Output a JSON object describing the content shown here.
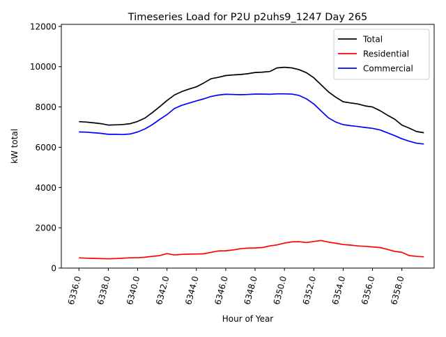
{
  "chart_data": {
    "type": "line",
    "title": "Timeseries Load for P2U p2uhs9_1247  Day 265",
    "xlabel": "Hour of Year",
    "ylabel": "kW total",
    "xlim": [
      6334.8,
      6360.2
    ],
    "ylim": [
      0,
      12100
    ],
    "xticks": [
      6336,
      6338,
      6340,
      6342,
      6344,
      6346,
      6348,
      6350,
      6352,
      6354,
      6356,
      6358
    ],
    "xtick_labels": [
      "6336.0",
      "6338.0",
      "6340.0",
      "6342.0",
      "6344.0",
      "6346.0",
      "6348.0",
      "6350.0",
      "6352.0",
      "6354.0",
      "6356.0",
      "6358.0"
    ],
    "yticks": [
      0,
      2000,
      4000,
      6000,
      8000,
      10000,
      12000
    ],
    "ytick_labels": [
      "0",
      "2000",
      "4000",
      "6000",
      "8000",
      "10000",
      "12000"
    ],
    "grid": false,
    "legend_position": "top-right",
    "x": [
      6336.0,
      6336.5,
      6337.0,
      6337.5,
      6338.0,
      6338.5,
      6339.0,
      6339.5,
      6340.0,
      6340.5,
      6341.0,
      6341.5,
      6342.0,
      6342.5,
      6343.0,
      6343.5,
      6344.0,
      6344.5,
      6345.0,
      6345.5,
      6346.0,
      6346.5,
      6347.0,
      6347.5,
      6348.0,
      6348.5,
      6349.0,
      6349.5,
      6350.0,
      6350.5,
      6351.0,
      6351.5,
      6352.0,
      6352.5,
      6353.0,
      6353.5,
      6354.0,
      6354.5,
      6355.0,
      6355.5,
      6356.0,
      6356.5,
      6357.0,
      6357.5,
      6358.0,
      6358.5,
      6359.0,
      6359.5
    ],
    "series": [
      {
        "name": "Total",
        "color": "#000000",
        "values": [
          7270,
          7250,
          7210,
          7170,
          7100,
          7110,
          7130,
          7170,
          7280,
          7450,
          7720,
          8010,
          8320,
          8590,
          8760,
          8890,
          9000,
          9190,
          9400,
          9470,
          9560,
          9590,
          9610,
          9650,
          9710,
          9730,
          9760,
          9940,
          9970,
          9940,
          9850,
          9700,
          9450,
          9100,
          8750,
          8480,
          8260,
          8200,
          8150,
          8050,
          8000,
          7820,
          7600,
          7400,
          7100,
          6950,
          6780,
          6720
        ]
      },
      {
        "name": "Residential",
        "color": "#ff0000",
        "values": [
          510,
          490,
          480,
          470,
          460,
          470,
          490,
          510,
          510,
          540,
          580,
          620,
          720,
          650,
          680,
          690,
          700,
          710,
          780,
          850,
          860,
          900,
          960,
          990,
          1000,
          1020,
          1100,
          1150,
          1240,
          1300,
          1310,
          1270,
          1320,
          1370,
          1290,
          1230,
          1170,
          1140,
          1100,
          1080,
          1050,
          1020,
          930,
          830,
          780,
          620,
          580,
          560
        ]
      },
      {
        "name": "Commercial",
        "color": "#0000ff",
        "values": [
          6760,
          6750,
          6720,
          6690,
          6640,
          6640,
          6630,
          6660,
          6760,
          6910,
          7120,
          7380,
          7620,
          7920,
          8080,
          8190,
          8300,
          8400,
          8520,
          8590,
          8630,
          8620,
          8610,
          8620,
          8640,
          8640,
          8630,
          8650,
          8650,
          8640,
          8570,
          8400,
          8150,
          7800,
          7460,
          7250,
          7120,
          7070,
          7030,
          6980,
          6940,
          6860,
          6720,
          6580,
          6420,
          6300,
          6200,
          6160
        ]
      }
    ]
  }
}
